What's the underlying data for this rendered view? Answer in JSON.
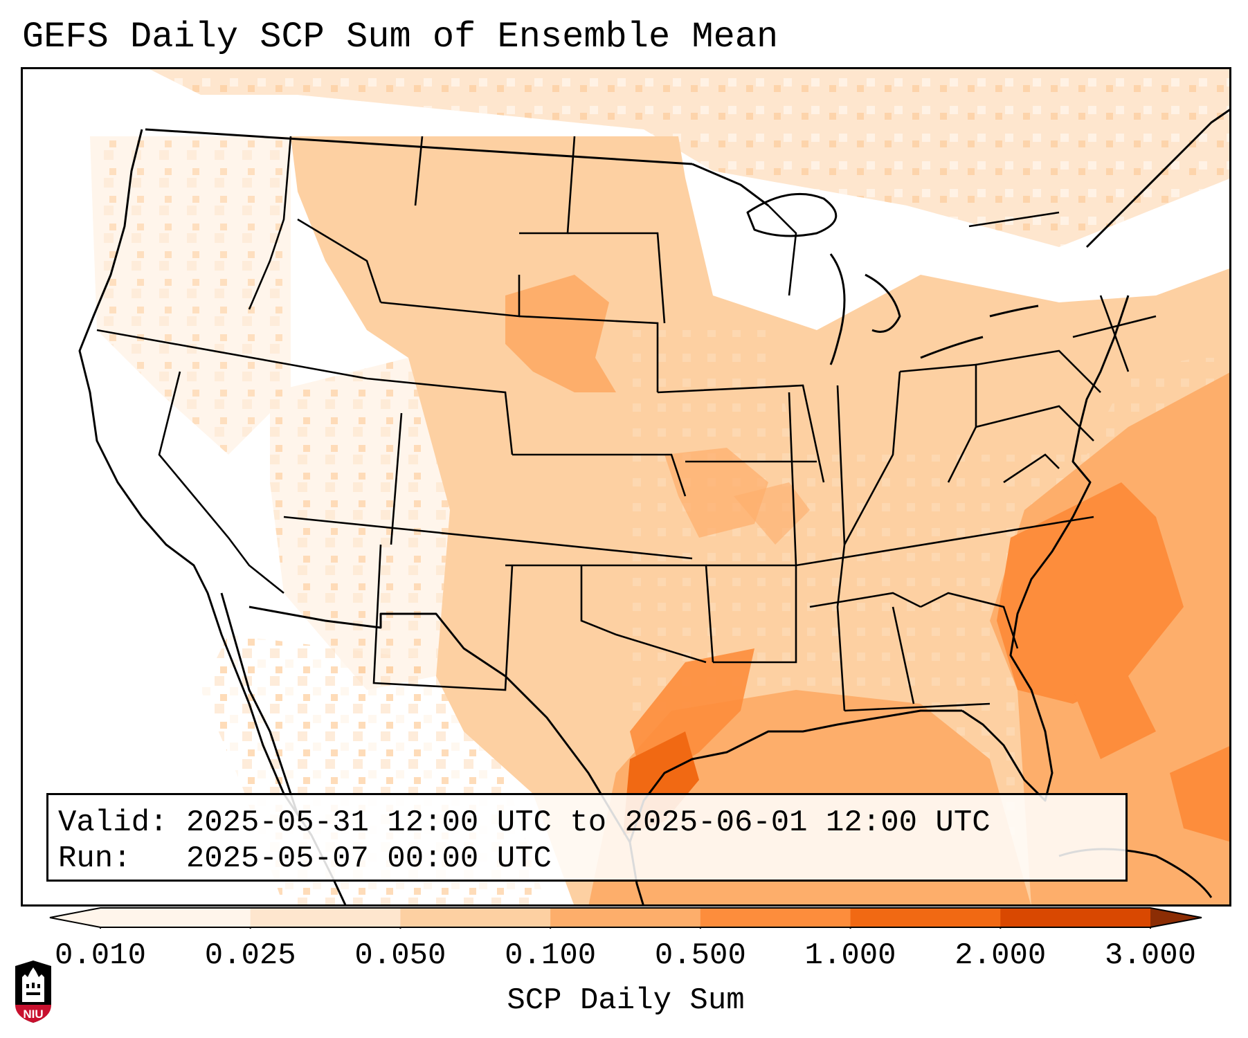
{
  "title": "GEFS Daily SCP Sum of Ensemble Mean",
  "info": {
    "valid_label": "Valid:",
    "valid_value": "2025-05-31 12:00 UTC to 2025-06-01 12:00 UTC",
    "run_label": "Run:",
    "run_value": "2025-05-07 00:00 UTC"
  },
  "colorbar": {
    "label": "SCP Daily Sum",
    "ticks": [
      "0.010",
      "0.025",
      "0.050",
      "0.100",
      "0.500",
      "1.000",
      "2.000",
      "3.000"
    ],
    "colors": [
      "#fff5eb",
      "#fee6ce",
      "#fdd0a2",
      "#fdae6b",
      "#fd8d3c",
      "#f16913",
      "#d94801",
      "#8c2d04"
    ],
    "extend": "both"
  },
  "logo": {
    "text": "NIU",
    "color": "#c8102e"
  },
  "legend_colors": {
    "boundary": "#000000"
  }
}
